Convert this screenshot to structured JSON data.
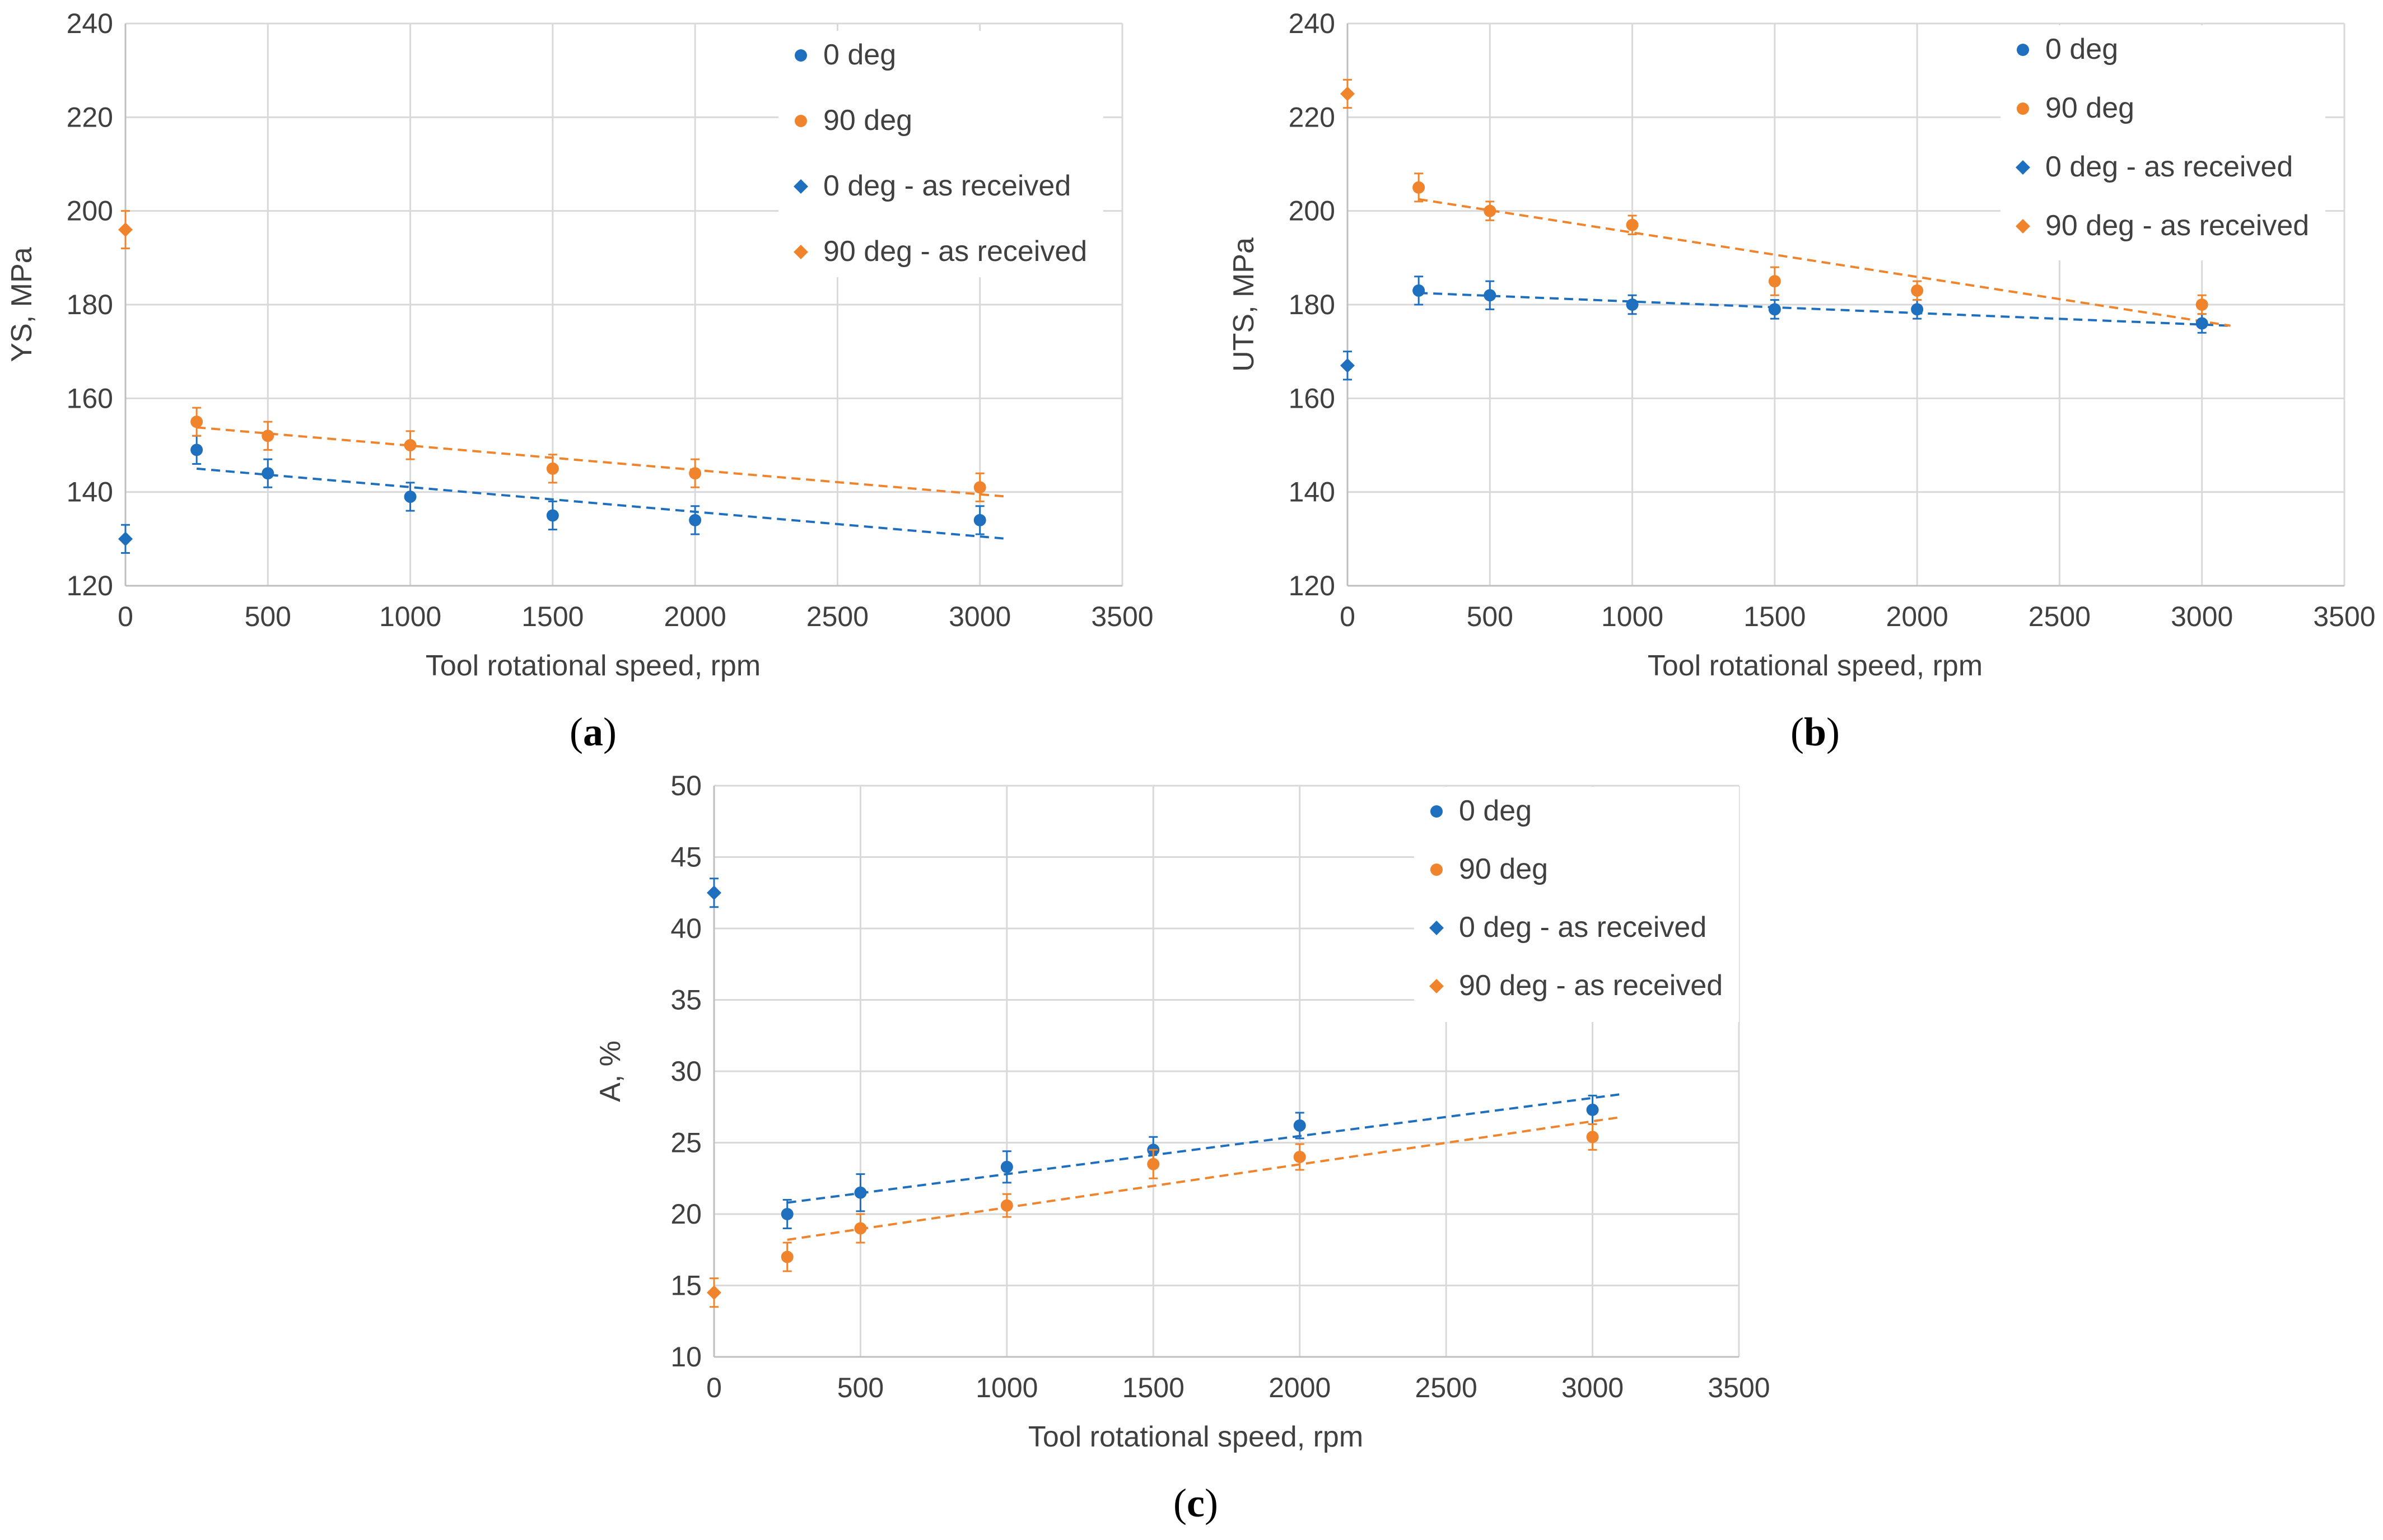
{
  "colors": {
    "series_0deg": "#1f6fbf",
    "series_90deg": "#f0842c",
    "grid": "#d9d9d9",
    "axis": "#bfbfbf"
  },
  "legend_labels": [
    "0 deg",
    "90 deg",
    "0 deg - as received",
    "90 deg - as received"
  ],
  "chart_data": [
    {
      "id": "a",
      "caption": "a",
      "type": "scatter",
      "xlabel": "Tool rotational speed, rpm",
      "ylabel": "YS,  MPa",
      "xlim": [
        0,
        3500
      ],
      "ylim": [
        120,
        240
      ],
      "xticks": [
        0,
        500,
        1000,
        1500,
        2000,
        2500,
        3000,
        3500
      ],
      "yticks": [
        120,
        140,
        160,
        180,
        200,
        220,
        240
      ],
      "legend_position": "top-right",
      "grid": true,
      "series": [
        {
          "name": "0 deg",
          "marker": "circle",
          "color": "#1f6fbf",
          "x": [
            250,
            500,
            1000,
            1500,
            2000,
            3000
          ],
          "y": [
            149,
            144,
            139,
            135,
            134,
            134
          ],
          "err": [
            3,
            3,
            3,
            3,
            3,
            3
          ]
        },
        {
          "name": "90 deg",
          "marker": "circle",
          "color": "#f0842c",
          "x": [
            250,
            500,
            1000,
            1500,
            2000,
            3000
          ],
          "y": [
            155,
            152,
            150,
            145,
            144,
            141
          ],
          "err": [
            3,
            3,
            3,
            3,
            3,
            3
          ]
        },
        {
          "name": "0 deg - as received",
          "marker": "diamond",
          "color": "#1f6fbf",
          "x": [
            0
          ],
          "y": [
            130
          ],
          "err": [
            3
          ]
        },
        {
          "name": "90 deg - as received",
          "marker": "diamond",
          "color": "#f0842c",
          "x": [
            0
          ],
          "y": [
            196
          ],
          "err": [
            4
          ]
        }
      ],
      "trendlines": [
        {
          "color": "#1f6fbf",
          "x": [
            250,
            3100
          ],
          "y": [
            145,
            130
          ]
        },
        {
          "color": "#f0842c",
          "x": [
            250,
            3100
          ],
          "y": [
            153.8,
            139
          ]
        }
      ]
    },
    {
      "id": "b",
      "caption": "b",
      "type": "scatter",
      "xlabel": "Tool rotational speed, rpm",
      "ylabel": "UTS,  MPa",
      "xlim": [
        0,
        3500
      ],
      "ylim": [
        120,
        240
      ],
      "xticks": [
        0,
        500,
        1000,
        1500,
        2000,
        2500,
        3000,
        3500
      ],
      "yticks": [
        120,
        140,
        160,
        180,
        200,
        220,
        240
      ],
      "legend_position": "top-right",
      "grid": true,
      "series": [
        {
          "name": "0 deg",
          "marker": "circle",
          "color": "#1f6fbf",
          "x": [
            250,
            500,
            1000,
            1500,
            2000,
            3000
          ],
          "y": [
            183,
            182,
            180,
            179,
            179,
            176
          ],
          "err": [
            3,
            3,
            2,
            2,
            2,
            2
          ]
        },
        {
          "name": "90 deg",
          "marker": "circle",
          "color": "#f0842c",
          "x": [
            250,
            500,
            1000,
            1500,
            2000,
            3000
          ],
          "y": [
            205,
            200,
            197,
            185,
            183,
            180
          ],
          "err": [
            3,
            2,
            2,
            3,
            2,
            2
          ]
        },
        {
          "name": "0 deg - as received",
          "marker": "diamond",
          "color": "#1f6fbf",
          "x": [
            0
          ],
          "y": [
            167
          ],
          "err": [
            3
          ]
        },
        {
          "name": "90 deg - as received",
          "marker": "diamond",
          "color": "#f0842c",
          "x": [
            0
          ],
          "y": [
            225
          ],
          "err": [
            3
          ]
        }
      ],
      "trendlines": [
        {
          "color": "#1f6fbf",
          "x": [
            250,
            3100
          ],
          "y": [
            182.5,
            175.5
          ]
        },
        {
          "color": "#f0842c",
          "x": [
            250,
            3100
          ],
          "y": [
            202.5,
            175.5
          ]
        }
      ]
    },
    {
      "id": "c",
      "caption": "c",
      "type": "scatter",
      "xlabel": "Tool rotational speed, rpm",
      "ylabel": "A, %",
      "xlim": [
        0,
        3500
      ],
      "ylim": [
        10,
        50
      ],
      "xticks": [
        0,
        500,
        1000,
        1500,
        2000,
        2500,
        3000,
        3500
      ],
      "yticks": [
        10,
        15,
        20,
        25,
        30,
        35,
        40,
        45,
        50
      ],
      "legend_position": "top-right",
      "grid": true,
      "series": [
        {
          "name": "0 deg",
          "marker": "circle",
          "color": "#1f6fbf",
          "x": [
            250,
            500,
            1000,
            1500,
            2000,
            3000
          ],
          "y": [
            20,
            21.5,
            23.3,
            24.5,
            26.2,
            27.3
          ],
          "err": [
            1,
            1.3,
            1.1,
            0.9,
            0.9,
            1
          ]
        },
        {
          "name": "90 deg",
          "marker": "circle",
          "color": "#f0842c",
          "x": [
            250,
            500,
            1000,
            1500,
            2000,
            3000
          ],
          "y": [
            17,
            19,
            20.6,
            23.5,
            24,
            25.4
          ],
          "err": [
            1,
            1,
            0.8,
            1,
            0.9,
            0.9
          ]
        },
        {
          "name": "0 deg - as received",
          "marker": "diamond",
          "color": "#1f6fbf",
          "x": [
            0
          ],
          "y": [
            42.5
          ],
          "err": [
            1
          ]
        },
        {
          "name": "90 deg - as received",
          "marker": "diamond",
          "color": "#f0842c",
          "x": [
            0
          ],
          "y": [
            14.5
          ],
          "err": [
            1
          ]
        }
      ],
      "trendlines": [
        {
          "color": "#1f6fbf",
          "x": [
            250,
            3100
          ],
          "y": [
            20.8,
            28.4
          ]
        },
        {
          "color": "#f0842c",
          "x": [
            250,
            3100
          ],
          "y": [
            18.2,
            26.8
          ]
        }
      ]
    }
  ]
}
